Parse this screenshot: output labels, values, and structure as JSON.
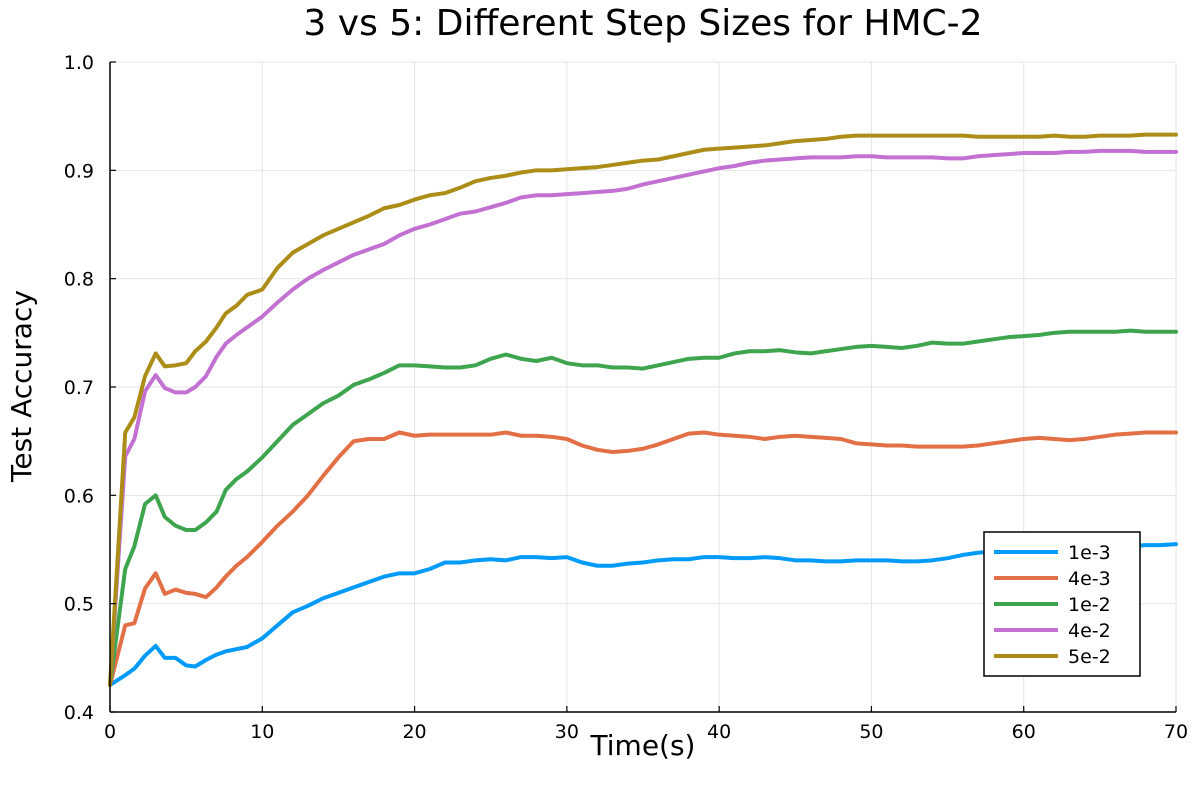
{
  "chart_data": {
    "type": "line",
    "title": "3 vs 5: Different Step Sizes for HMC-2",
    "xlabel": "Time(s)",
    "ylabel": "Test Accuracy",
    "xlim": [
      0,
      70
    ],
    "ylim": [
      0.4,
      1.0
    ],
    "xticks": [
      "0",
      "10",
      "20",
      "30",
      "40",
      "50",
      "60",
      "70"
    ],
    "yticks": [
      "0.4",
      "0.5",
      "0.6",
      "0.7",
      "0.8",
      "0.9",
      "1.0"
    ],
    "grid": true,
    "legend_position": "bottom-right",
    "series": [
      {
        "name": "1e-3",
        "color": "#009af9",
        "x": [
          0,
          1,
          1.6,
          2.3,
          3.0,
          3.6,
          4.3,
          5.0,
          5.6,
          6.3,
          7.0,
          7.6,
          8.3,
          9.0,
          10,
          11,
          12,
          13,
          14,
          15,
          16,
          17,
          18,
          19,
          20,
          21,
          22,
          23,
          24,
          25,
          26,
          27,
          28,
          29,
          30,
          31,
          32,
          33,
          34,
          35,
          36,
          37,
          38,
          39,
          40,
          41,
          42,
          43,
          44,
          45,
          46,
          47,
          48,
          49,
          50,
          51,
          52,
          53,
          54,
          55,
          56,
          57,
          58,
          59,
          60,
          61,
          62,
          63,
          64,
          65,
          66,
          67,
          68,
          69,
          70
        ],
        "y": [
          0.425,
          0.434,
          0.44,
          0.452,
          0.461,
          0.45,
          0.45,
          0.443,
          0.442,
          0.448,
          0.453,
          0.456,
          0.458,
          0.46,
          0.468,
          0.48,
          0.492,
          0.498,
          0.505,
          0.51,
          0.515,
          0.52,
          0.525,
          0.528,
          0.528,
          0.532,
          0.538,
          0.538,
          0.54,
          0.541,
          0.54,
          0.543,
          0.543,
          0.542,
          0.543,
          0.538,
          0.535,
          0.535,
          0.537,
          0.538,
          0.54,
          0.541,
          0.541,
          0.543,
          0.543,
          0.542,
          0.542,
          0.543,
          0.542,
          0.54,
          0.54,
          0.539,
          0.539,
          0.54,
          0.54,
          0.54,
          0.539,
          0.539,
          0.54,
          0.542,
          0.545,
          0.547,
          0.548,
          0.549,
          0.55,
          0.55,
          0.551,
          0.551,
          0.552,
          0.552,
          0.552,
          0.553,
          0.554,
          0.554,
          0.555
        ]
      },
      {
        "name": "4e-3",
        "color": "#e26f46",
        "x": [
          0,
          1,
          1.6,
          2.3,
          3.0,
          3.6,
          4.3,
          5.0,
          5.6,
          6.3,
          7.0,
          7.6,
          8.3,
          9.0,
          10,
          11,
          12,
          13,
          14,
          15,
          16,
          17,
          18,
          19,
          20,
          21,
          22,
          23,
          24,
          25,
          26,
          27,
          28,
          29,
          30,
          31,
          32,
          33,
          34,
          35,
          36,
          37,
          38,
          39,
          40,
          41,
          42,
          43,
          44,
          45,
          46,
          47,
          48,
          49,
          50,
          51,
          52,
          53,
          54,
          55,
          56,
          57,
          58,
          59,
          60,
          61,
          62,
          63,
          64,
          65,
          66,
          67,
          68,
          69,
          70
        ],
        "y": [
          0.425,
          0.48,
          0.482,
          0.514,
          0.528,
          0.509,
          0.513,
          0.51,
          0.509,
          0.506,
          0.515,
          0.525,
          0.535,
          0.543,
          0.557,
          0.572,
          0.585,
          0.6,
          0.618,
          0.635,
          0.65,
          0.652,
          0.652,
          0.658,
          0.655,
          0.656,
          0.656,
          0.656,
          0.656,
          0.656,
          0.658,
          0.655,
          0.655,
          0.654,
          0.652,
          0.646,
          0.642,
          0.64,
          0.641,
          0.643,
          0.647,
          0.652,
          0.657,
          0.658,
          0.656,
          0.655,
          0.654,
          0.652,
          0.654,
          0.655,
          0.654,
          0.653,
          0.652,
          0.648,
          0.647,
          0.646,
          0.646,
          0.645,
          0.645,
          0.645,
          0.645,
          0.646,
          0.648,
          0.65,
          0.652,
          0.653,
          0.652,
          0.651,
          0.652,
          0.654,
          0.656,
          0.657,
          0.658,
          0.658,
          0.658
        ]
      },
      {
        "name": "1e-2",
        "color": "#3ea44e",
        "x": [
          0,
          1,
          1.6,
          2.3,
          3.0,
          3.6,
          4.3,
          5.0,
          5.6,
          6.3,
          7.0,
          7.6,
          8.3,
          9.0,
          10,
          11,
          12,
          13,
          14,
          15,
          16,
          17,
          18,
          19,
          20,
          21,
          22,
          23,
          24,
          25,
          26,
          27,
          28,
          29,
          30,
          31,
          32,
          33,
          34,
          35,
          36,
          37,
          38,
          39,
          40,
          41,
          42,
          43,
          44,
          45,
          46,
          47,
          48,
          49,
          50,
          51,
          52,
          53,
          54,
          55,
          56,
          57,
          58,
          59,
          60,
          61,
          62,
          63,
          64,
          65,
          66,
          67,
          68,
          69,
          70
        ],
        "y": [
          0.425,
          0.532,
          0.553,
          0.592,
          0.6,
          0.58,
          0.572,
          0.568,
          0.568,
          0.575,
          0.585,
          0.605,
          0.615,
          0.622,
          0.635,
          0.65,
          0.665,
          0.675,
          0.685,
          0.692,
          0.702,
          0.707,
          0.713,
          0.72,
          0.72,
          0.719,
          0.718,
          0.718,
          0.72,
          0.726,
          0.73,
          0.726,
          0.724,
          0.727,
          0.722,
          0.72,
          0.72,
          0.718,
          0.718,
          0.717,
          0.72,
          0.723,
          0.726,
          0.727,
          0.727,
          0.731,
          0.733,
          0.733,
          0.734,
          0.732,
          0.731,
          0.733,
          0.735,
          0.737,
          0.738,
          0.737,
          0.736,
          0.738,
          0.741,
          0.74,
          0.74,
          0.742,
          0.744,
          0.746,
          0.747,
          0.748,
          0.75,
          0.751,
          0.751,
          0.751,
          0.751,
          0.752,
          0.751,
          0.751,
          0.751
        ]
      },
      {
        "name": "4e-2",
        "color": "#c271d2",
        "x": [
          0,
          1,
          1.6,
          2.3,
          3.0,
          3.6,
          4.3,
          5.0,
          5.6,
          6.3,
          7.0,
          7.6,
          8.3,
          9.0,
          10,
          11,
          12,
          13,
          14,
          15,
          16,
          17,
          18,
          19,
          20,
          21,
          22,
          23,
          24,
          25,
          26,
          27,
          28,
          29,
          30,
          31,
          32,
          33,
          34,
          35,
          36,
          37,
          38,
          39,
          40,
          41,
          42,
          43,
          44,
          45,
          46,
          47,
          48,
          49,
          50,
          51,
          52,
          53,
          54,
          55,
          56,
          57,
          58,
          59,
          60,
          61,
          62,
          63,
          64,
          65,
          66,
          67,
          68,
          69,
          70
        ],
        "y": [
          0.425,
          0.636,
          0.652,
          0.696,
          0.711,
          0.699,
          0.695,
          0.695,
          0.7,
          0.71,
          0.728,
          0.74,
          0.748,
          0.755,
          0.765,
          0.778,
          0.79,
          0.8,
          0.808,
          0.815,
          0.822,
          0.827,
          0.832,
          0.84,
          0.846,
          0.85,
          0.855,
          0.86,
          0.862,
          0.866,
          0.87,
          0.875,
          0.877,
          0.877,
          0.878,
          0.879,
          0.88,
          0.881,
          0.883,
          0.887,
          0.89,
          0.893,
          0.896,
          0.899,
          0.902,
          0.904,
          0.907,
          0.909,
          0.91,
          0.911,
          0.912,
          0.912,
          0.912,
          0.913,
          0.913,
          0.912,
          0.912,
          0.912,
          0.912,
          0.911,
          0.911,
          0.913,
          0.914,
          0.915,
          0.916,
          0.916,
          0.916,
          0.917,
          0.917,
          0.918,
          0.918,
          0.918,
          0.917,
          0.917,
          0.917
        ]
      },
      {
        "name": "5e-2",
        "color": "#ac8d18",
        "x": [
          0,
          1,
          1.6,
          2.3,
          3.0,
          3.6,
          4.3,
          5.0,
          5.6,
          6.3,
          7.0,
          7.6,
          8.3,
          9.0,
          10,
          11,
          12,
          13,
          14,
          15,
          16,
          17,
          18,
          19,
          20,
          21,
          22,
          23,
          24,
          25,
          26,
          27,
          28,
          29,
          30,
          31,
          32,
          33,
          34,
          35,
          36,
          37,
          38,
          39,
          40,
          41,
          42,
          43,
          44,
          45,
          46,
          47,
          48,
          49,
          50,
          51,
          52,
          53,
          54,
          55,
          56,
          57,
          58,
          59,
          60,
          61,
          62,
          63,
          64,
          65,
          66,
          67,
          68,
          69,
          70
        ],
        "y": [
          0.425,
          0.658,
          0.672,
          0.71,
          0.731,
          0.719,
          0.72,
          0.722,
          0.733,
          0.742,
          0.755,
          0.768,
          0.775,
          0.785,
          0.79,
          0.81,
          0.824,
          0.832,
          0.84,
          0.846,
          0.852,
          0.858,
          0.865,
          0.868,
          0.873,
          0.877,
          0.879,
          0.884,
          0.89,
          0.893,
          0.895,
          0.898,
          0.9,
          0.9,
          0.901,
          0.902,
          0.903,
          0.905,
          0.907,
          0.909,
          0.91,
          0.913,
          0.916,
          0.919,
          0.92,
          0.921,
          0.922,
          0.923,
          0.925,
          0.927,
          0.928,
          0.929,
          0.931,
          0.932,
          0.932,
          0.932,
          0.932,
          0.932,
          0.932,
          0.932,
          0.932,
          0.931,
          0.931,
          0.931,
          0.931,
          0.931,
          0.932,
          0.931,
          0.931,
          0.932,
          0.932,
          0.932,
          0.933,
          0.933,
          0.933
        ]
      }
    ]
  }
}
